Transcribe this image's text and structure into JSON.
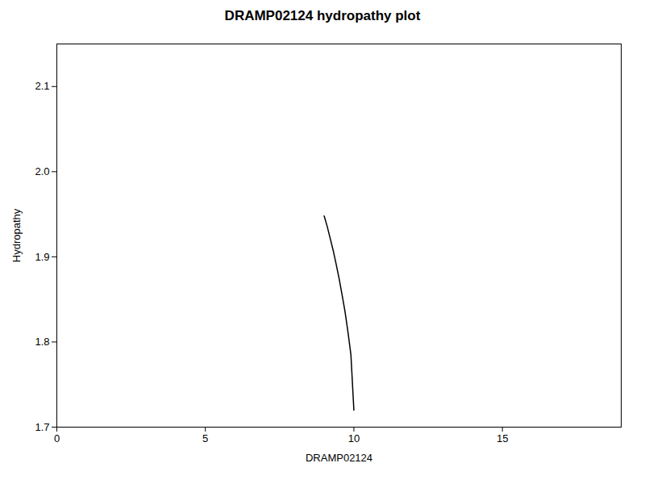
{
  "chart_data": {
    "type": "line",
    "title": "DRAMP02124 hydropathy plot",
    "xlabel": "DRAMP02124",
    "ylabel": "Hydropathy",
    "x": [
      9.0,
      9.1,
      9.2,
      9.3,
      9.4,
      9.5,
      9.6,
      9.7,
      9.8,
      9.9,
      10.0
    ],
    "values": [
      1.948,
      1.936,
      1.922,
      1.908,
      1.892,
      1.875,
      1.856,
      1.836,
      1.812,
      1.785,
      1.72
    ],
    "color": "#000000",
    "xlim": [
      0,
      19
    ],
    "xticks": [
      0,
      5,
      10,
      15
    ],
    "ylim": [
      1.7,
      2.15
    ],
    "yticks": [
      1.7,
      1.8,
      1.9,
      {
        "value": 2.0,
        "label": "2.0"
      },
      2.1
    ]
  }
}
